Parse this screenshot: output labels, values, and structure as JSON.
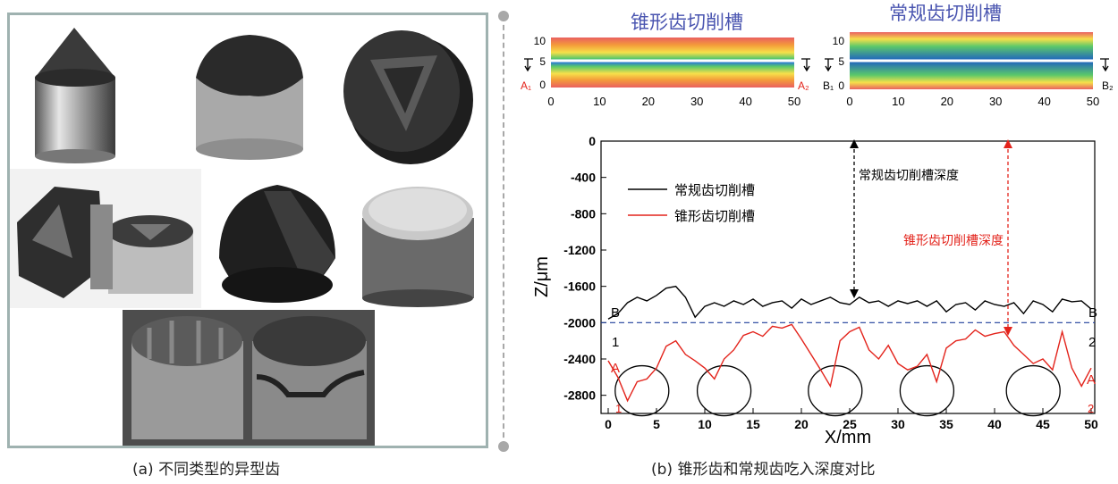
{
  "panel_a": {
    "caption": "(a) 不同类型的异型齿"
  },
  "panel_b": {
    "caption": "(b) 锥形齿和常规齿吃入深度对比",
    "map_left": {
      "title": "锥形齿切削槽",
      "y_ticks": [
        "10",
        "5",
        "0"
      ],
      "x_ticks": [
        "0",
        "10",
        "20",
        "30",
        "40",
        "50"
      ],
      "section_start": "A₁",
      "section_end": "A₂"
    },
    "map_right": {
      "title": "常规齿切削槽",
      "y_ticks": [
        "10",
        "5",
        "0"
      ],
      "x_ticks": [
        "0",
        "10",
        "20",
        "30",
        "40",
        "50"
      ],
      "section_start": "B₁",
      "section_end": "B₂"
    },
    "depth_annot_black": "常规齿切削槽深度",
    "depth_annot_red": "锥形齿切削槽深度",
    "end_labels": {
      "b_left": "B",
      "b_right": "B",
      "one": "1",
      "two": "2",
      "a_left": "A",
      "a_right": "A",
      "one_red": "1",
      "two_red": "2"
    },
    "colors": {
      "conventional": "#000000",
      "conical": "#e3231b",
      "reference": "#1f3f99",
      "ellipse": "#000000"
    }
  },
  "chart_data": {
    "type": "line",
    "xlabel": "X/mm",
    "ylabel": "Z/μm",
    "xlim": [
      0,
      50
    ],
    "ylim": [
      -3000,
      0
    ],
    "x_ticks": [
      0,
      5,
      10,
      15,
      20,
      25,
      30,
      35,
      40,
      45,
      50
    ],
    "y_ticks": [
      0,
      -400,
      -800,
      -1200,
      -1600,
      -2000,
      -2400,
      -2800
    ],
    "reference_line_y": -2000,
    "series": [
      {
        "name": "常规齿切削槽",
        "x": [
          0,
          1,
          2,
          3,
          4,
          5,
          6,
          7,
          8,
          9,
          10,
          11,
          12,
          13,
          14,
          15,
          16,
          17,
          18,
          19,
          20,
          21,
          22,
          23,
          24,
          25,
          26,
          27,
          28,
          29,
          30,
          31,
          32,
          33,
          34,
          35,
          36,
          37,
          38,
          39,
          40,
          41,
          42,
          43,
          44,
          45,
          46,
          47,
          48,
          49,
          50
        ],
        "values": [
          -1960,
          -1900,
          -1780,
          -1720,
          -1760,
          -1700,
          -1620,
          -1600,
          -1720,
          -1940,
          -1820,
          -1780,
          -1820,
          -1760,
          -1800,
          -1740,
          -1820,
          -1780,
          -1760,
          -1840,
          -1740,
          -1800,
          -1760,
          -1720,
          -1780,
          -1800,
          -1720,
          -1780,
          -1760,
          -1820,
          -1760,
          -1790,
          -1760,
          -1820,
          -1760,
          -1880,
          -1800,
          -1780,
          -1860,
          -1760,
          -1800,
          -1820,
          -1780,
          -1900,
          -1760,
          -1800,
          -1880,
          -1740,
          -1770,
          -1760,
          -1850
        ]
      },
      {
        "name": "锥形齿切削槽",
        "x": [
          0,
          1,
          2,
          3,
          4,
          5,
          6,
          7,
          8,
          9,
          10,
          11,
          12,
          13,
          14,
          15,
          16,
          17,
          18,
          19,
          20,
          21,
          22,
          23,
          24,
          25,
          26,
          27,
          28,
          29,
          30,
          31,
          32,
          33,
          34,
          35,
          36,
          37,
          38,
          39,
          40,
          41,
          42,
          43,
          44,
          45,
          46,
          47,
          48,
          49,
          50
        ],
        "values": [
          -2420,
          -2600,
          -2860,
          -2650,
          -2620,
          -2500,
          -2260,
          -2200,
          -2350,
          -2420,
          -2500,
          -2620,
          -2400,
          -2300,
          -2140,
          -2100,
          -2150,
          -2040,
          -2060,
          -2020,
          -2180,
          -2350,
          -2520,
          -2700,
          -2200,
          -2100,
          -2050,
          -2300,
          -2400,
          -2250,
          -2450,
          -2520,
          -2480,
          -2350,
          -2650,
          -2280,
          -2200,
          -2180,
          -2080,
          -2150,
          -2120,
          -2100,
          -2250,
          -2350,
          -2450,
          -2400,
          -2520,
          -2100,
          -2500,
          -2700,
          -2500
        ]
      }
    ],
    "circles_x": [
      3.5,
      12,
      23.5,
      33,
      44
    ]
  }
}
